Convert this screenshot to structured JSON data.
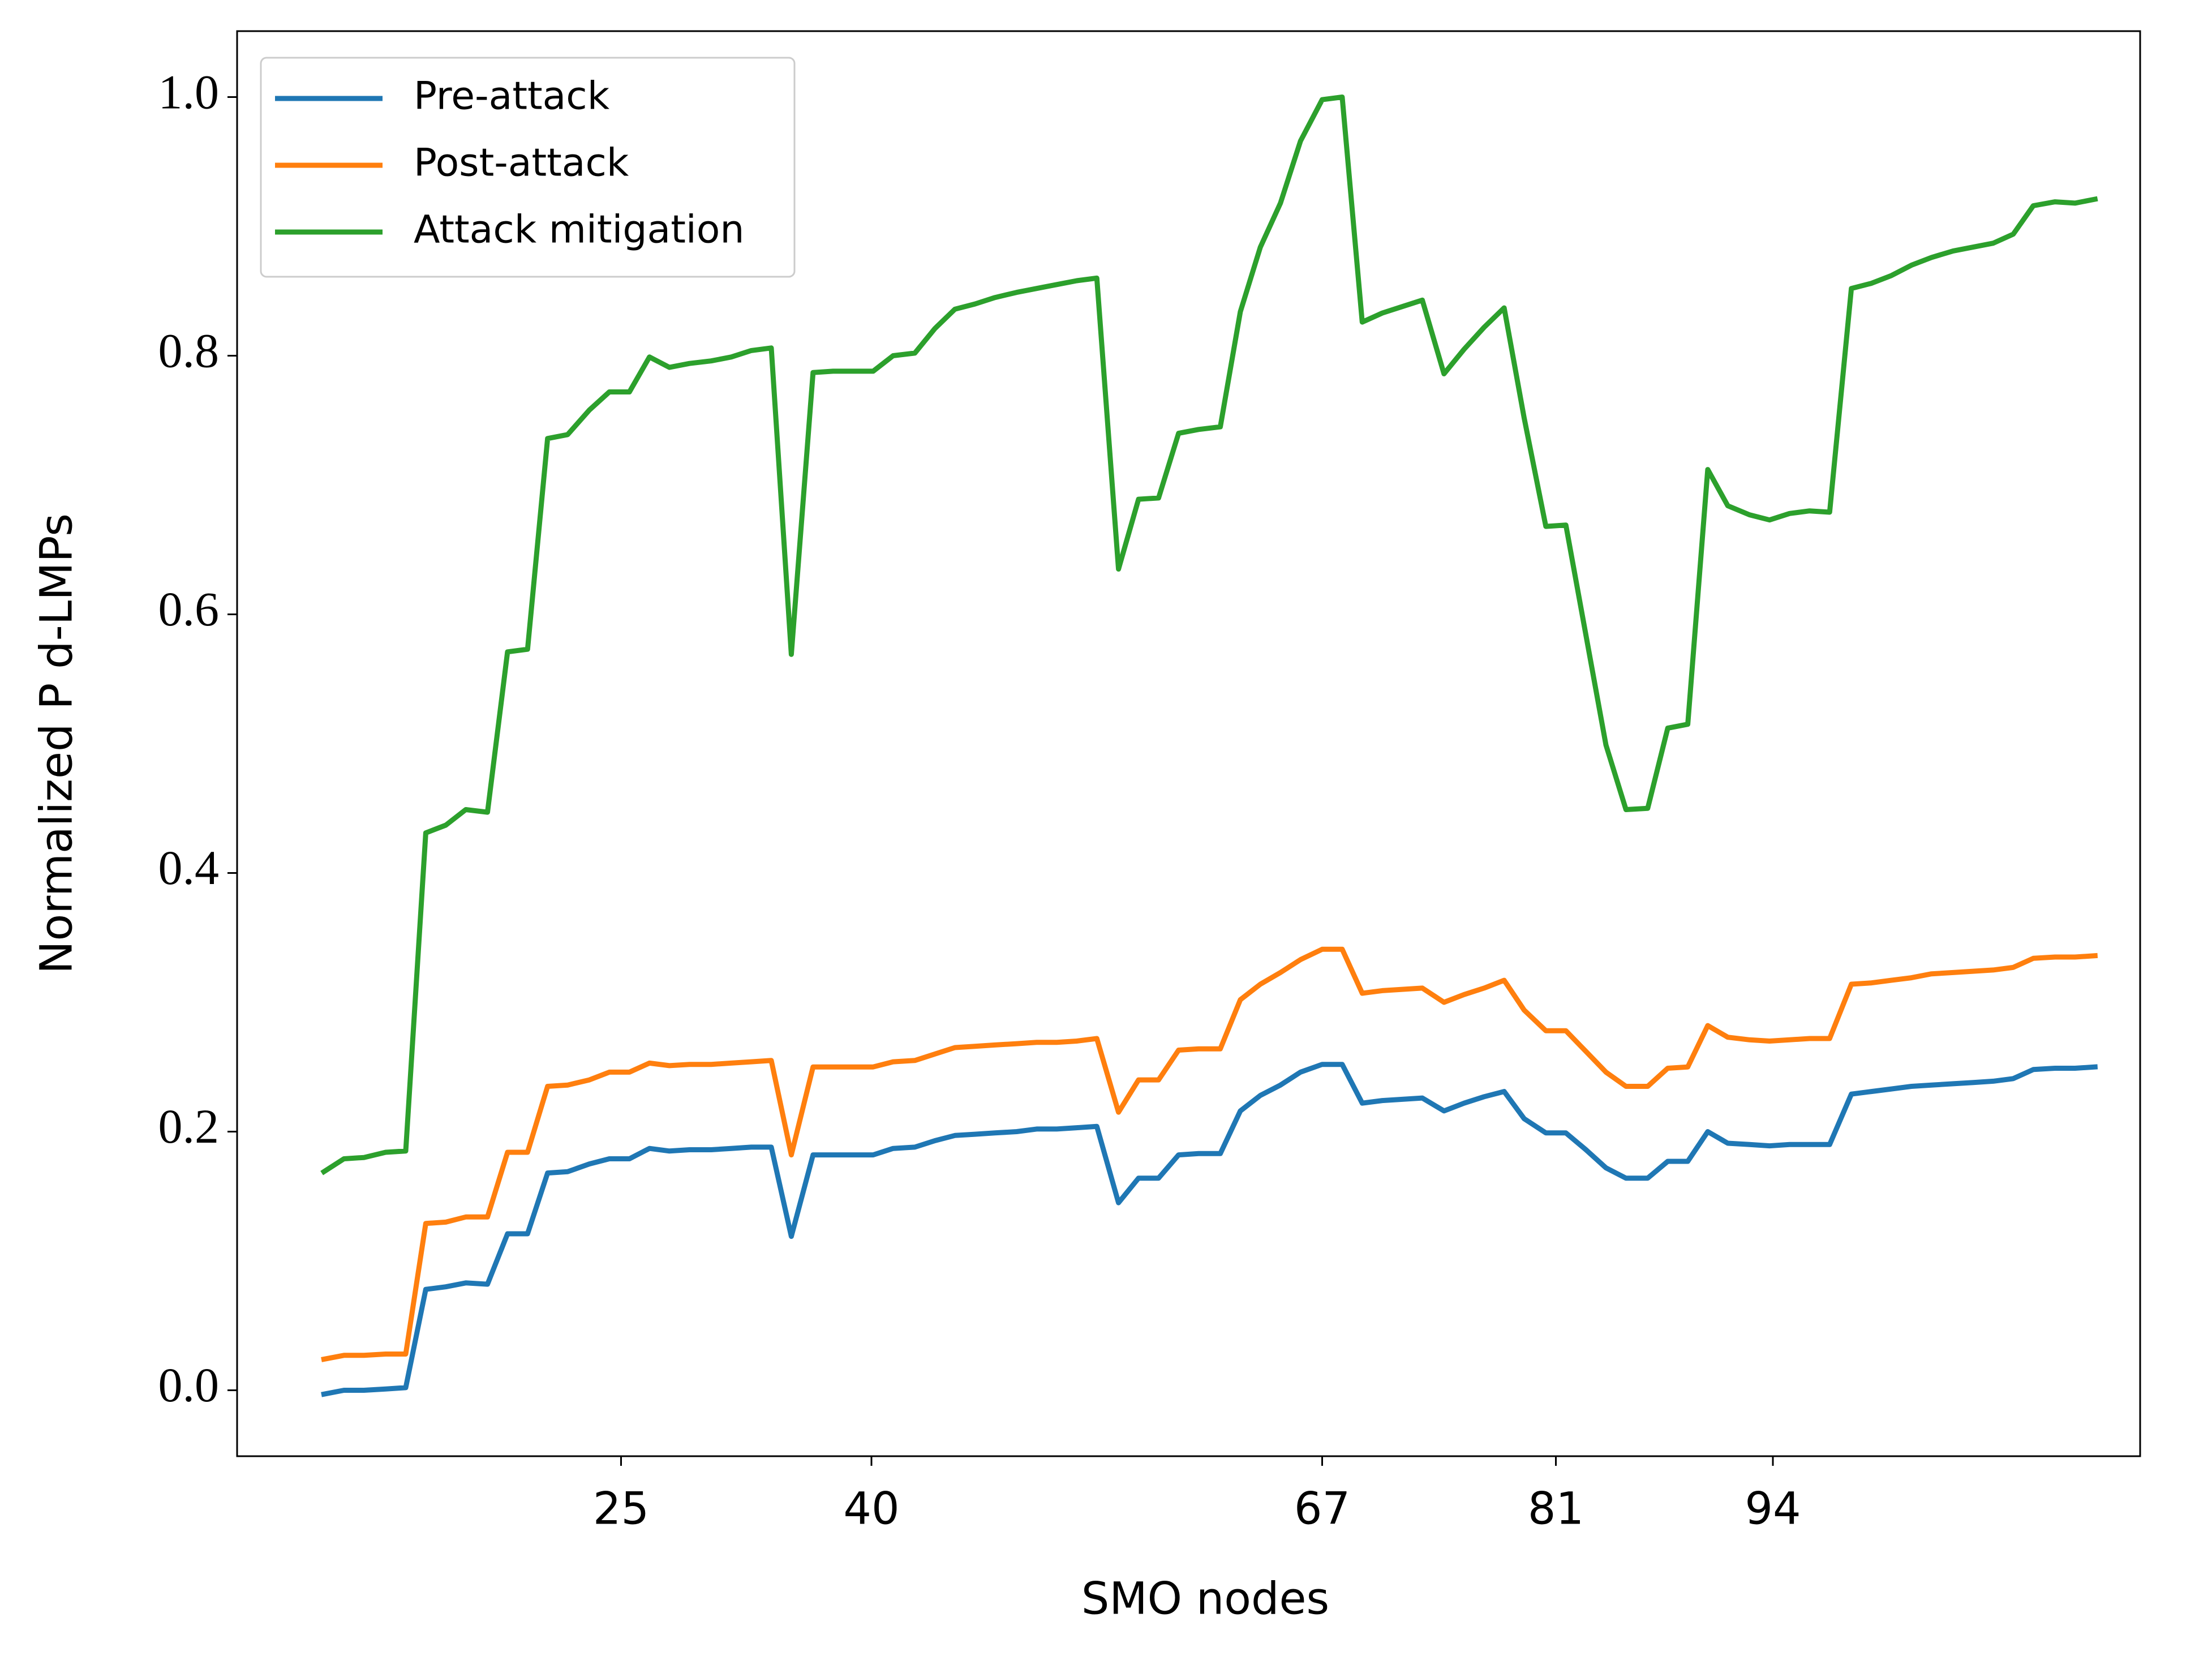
{
  "chart_data": {
    "type": "line",
    "x_label": "SMO nodes",
    "y_label": "Normalized P d-LMPs",
    "x": [
      7.2,
      8.4,
      9.6,
      10.9,
      12.1,
      13.3,
      14.5,
      15.7,
      17.0,
      18.2,
      19.4,
      20.6,
      21.8,
      23.1,
      24.3,
      25.5,
      26.7,
      27.9,
      29.1,
      30.4,
      31.6,
      32.8,
      34.0,
      35.2,
      36.5,
      37.7,
      38.9,
      40.1,
      41.3,
      42.6,
      43.8,
      45.0,
      46.2,
      47.4,
      48.7,
      49.9,
      51.1,
      52.3,
      53.5,
      54.8,
      56.0,
      57.2,
      58.4,
      59.6,
      60.9,
      62.1,
      63.3,
      64.5,
      65.7,
      67.0,
      68.2,
      69.4,
      70.6,
      71.8,
      73.0,
      74.3,
      75.5,
      76.7,
      77.9,
      79.1,
      80.4,
      81.6,
      82.8,
      84.0,
      85.2,
      86.5,
      87.7,
      88.9,
      90.1,
      91.3,
      92.6,
      93.8,
      95.0,
      96.2,
      97.4,
      98.7,
      99.9,
      101.1,
      102.3,
      103.5,
      104.8,
      106.0,
      107.2,
      108.4,
      109.6,
      110.9,
      112.1,
      113.3
    ],
    "series": [
      {
        "name": "Pre-attack",
        "color": "#1f77b4",
        "values": [
          -0.003,
          0.0,
          0.0,
          0.001,
          0.002,
          0.078,
          0.08,
          0.083,
          0.082,
          0.121,
          0.121,
          0.168,
          0.169,
          0.175,
          0.179,
          0.179,
          0.187,
          0.185,
          0.186,
          0.186,
          0.187,
          0.188,
          0.188,
          0.119,
          0.182,
          0.182,
          0.182,
          0.182,
          0.187,
          0.188,
          0.193,
          0.197,
          0.198,
          0.199,
          0.2,
          0.202,
          0.202,
          0.203,
          0.204,
          0.145,
          0.164,
          0.164,
          0.182,
          0.183,
          0.183,
          0.216,
          0.228,
          0.236,
          0.246,
          0.252,
          0.252,
          0.222,
          0.224,
          0.225,
          0.226,
          0.216,
          0.222,
          0.227,
          0.231,
          0.21,
          0.199,
          0.199,
          0.186,
          0.172,
          0.164,
          0.164,
          0.177,
          0.177,
          0.2,
          0.191,
          0.19,
          0.189,
          0.19,
          0.19,
          0.19,
          0.229,
          0.231,
          0.233,
          0.235,
          0.236,
          0.237,
          0.238,
          0.239,
          0.241,
          0.248,
          0.249,
          0.249,
          0.25
        ]
      },
      {
        "name": "Post-attack",
        "color": "#ff7f0e",
        "values": [
          0.024,
          0.027,
          0.027,
          0.028,
          0.028,
          0.129,
          0.13,
          0.134,
          0.134,
          0.184,
          0.184,
          0.235,
          0.236,
          0.24,
          0.246,
          0.246,
          0.253,
          0.251,
          0.252,
          0.252,
          0.253,
          0.254,
          0.255,
          0.182,
          0.25,
          0.25,
          0.25,
          0.25,
          0.254,
          0.255,
          0.26,
          0.265,
          0.266,
          0.267,
          0.268,
          0.269,
          0.269,
          0.27,
          0.272,
          0.215,
          0.24,
          0.24,
          0.263,
          0.264,
          0.264,
          0.302,
          0.314,
          0.323,
          0.333,
          0.341,
          0.341,
          0.307,
          0.309,
          0.31,
          0.311,
          0.3,
          0.306,
          0.311,
          0.317,
          0.294,
          0.278,
          0.278,
          0.262,
          0.246,
          0.235,
          0.235,
          0.249,
          0.25,
          0.282,
          0.273,
          0.271,
          0.27,
          0.271,
          0.272,
          0.272,
          0.314,
          0.315,
          0.317,
          0.319,
          0.322,
          0.323,
          0.324,
          0.325,
          0.327,
          0.334,
          0.335,
          0.335,
          0.336
        ]
      },
      {
        "name": "Attack mitigation",
        "color": "#2ca02c",
        "values": [
          0.169,
          0.179,
          0.18,
          0.184,
          0.185,
          0.431,
          0.437,
          0.449,
          0.447,
          0.571,
          0.573,
          0.736,
          0.739,
          0.758,
          0.772,
          0.772,
          0.799,
          0.791,
          0.794,
          0.796,
          0.799,
          0.804,
          0.806,
          0.569,
          0.787,
          0.788,
          0.788,
          0.788,
          0.8,
          0.802,
          0.821,
          0.836,
          0.84,
          0.845,
          0.849,
          0.852,
          0.855,
          0.858,
          0.86,
          0.635,
          0.689,
          0.69,
          0.74,
          0.743,
          0.745,
          0.834,
          0.884,
          0.918,
          0.966,
          0.998,
          1.0,
          0.826,
          0.833,
          0.838,
          0.843,
          0.786,
          0.805,
          0.822,
          0.837,
          0.752,
          0.668,
          0.669,
          0.584,
          0.499,
          0.449,
          0.45,
          0.512,
          0.515,
          0.712,
          0.684,
          0.677,
          0.673,
          0.678,
          0.68,
          0.679,
          0.852,
          0.856,
          0.862,
          0.87,
          0.876,
          0.881,
          0.884,
          0.887,
          0.894,
          0.916,
          0.919,
          0.918,
          0.921
        ]
      }
    ],
    "xlim": [
      2,
      116
    ],
    "ylim": [
      -0.051,
      1.051
    ],
    "xticks": [
      25,
      40,
      67,
      81,
      94
    ],
    "yticks": [
      {
        "value": 0,
        "label": "0.0"
      },
      {
        "value": 0.2,
        "label": "0.2"
      },
      {
        "value": 0.4,
        "label": "0.4"
      },
      {
        "value": 0.6,
        "label": "0.6"
      },
      {
        "value": 0.8,
        "label": "0.8"
      },
      {
        "value": 1,
        "label": "1.0"
      }
    ],
    "legend": "upper left",
    "grid": false
  }
}
